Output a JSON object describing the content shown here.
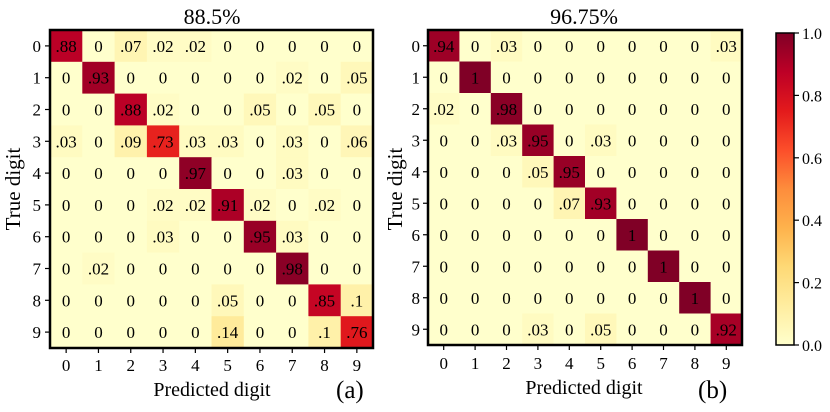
{
  "colormap": [
    "#ffffcc",
    "#ffeda0",
    "#fed976",
    "#feb24c",
    "#fd8d3c",
    "#fc4e2a",
    "#e31a1c",
    "#bd0026",
    "#800026"
  ],
  "chart_data": [
    {
      "type": "heatmap",
      "panel_label": "(a)",
      "title": "88.5%",
      "xlabel": "Predicted digit",
      "ylabel": "True digit",
      "x_ticks": [
        "0",
        "1",
        "2",
        "3",
        "4",
        "5",
        "6",
        "7",
        "8",
        "9"
      ],
      "y_ticks": [
        "0",
        "1",
        "2",
        "3",
        "4",
        "5",
        "6",
        "7",
        "8",
        "9"
      ],
      "value_range": [
        0,
        1
      ],
      "values": [
        [
          0.88,
          0,
          0.07,
          0.02,
          0.02,
          0,
          0,
          0,
          0,
          0
        ],
        [
          0,
          0.93,
          0,
          0,
          0,
          0,
          0,
          0.02,
          0,
          0.05
        ],
        [
          0,
          0,
          0.88,
          0.02,
          0,
          0,
          0.05,
          0,
          0.05,
          0
        ],
        [
          0.03,
          0,
          0.09,
          0.73,
          0.03,
          0.03,
          0,
          0.03,
          0,
          0.06
        ],
        [
          0,
          0,
          0,
          0,
          0.97,
          0,
          0,
          0.03,
          0,
          0
        ],
        [
          0,
          0,
          0,
          0.02,
          0.02,
          0.91,
          0.02,
          0,
          0.02,
          0
        ],
        [
          0,
          0,
          0,
          0.03,
          0,
          0,
          0.95,
          0.03,
          0,
          0
        ],
        [
          0,
          0.02,
          0,
          0,
          0,
          0,
          0,
          0.98,
          0,
          0
        ],
        [
          0,
          0,
          0,
          0,
          0,
          0.05,
          0,
          0,
          0.85,
          0.1
        ],
        [
          0,
          0,
          0,
          0,
          0,
          0.14,
          0,
          0,
          0.1,
          0.76
        ]
      ],
      "cell_labels": [
        [
          ".88",
          "0",
          ".07",
          ".02",
          ".02",
          "0",
          "0",
          "0",
          "0",
          "0"
        ],
        [
          "0",
          ".93",
          "0",
          "0",
          "0",
          "0",
          "0",
          ".02",
          "0",
          ".05"
        ],
        [
          "0",
          "0",
          ".88",
          ".02",
          "0",
          "0",
          ".05",
          "0",
          ".05",
          "0"
        ],
        [
          ".03",
          "0",
          ".09",
          ".73",
          ".03",
          ".03",
          "0",
          ".03",
          "0",
          ".06"
        ],
        [
          "0",
          "0",
          "0",
          "0",
          ".97",
          "0",
          "0",
          ".03",
          "0",
          "0"
        ],
        [
          "0",
          "0",
          "0",
          ".02",
          ".02",
          ".91",
          ".02",
          "0",
          ".02",
          "0"
        ],
        [
          "0",
          "0",
          "0",
          ".03",
          "0",
          "0",
          ".95",
          ".03",
          "0",
          "0"
        ],
        [
          "0",
          ".02",
          "0",
          "0",
          "0",
          "0",
          "0",
          ".98",
          "0",
          "0"
        ],
        [
          "0",
          "0",
          "0",
          "0",
          "0",
          ".05",
          "0",
          "0",
          ".85",
          ".1"
        ],
        [
          "0",
          "0",
          "0",
          "0",
          "0",
          ".14",
          "0",
          "0",
          ".1",
          ".76"
        ]
      ]
    },
    {
      "type": "heatmap",
      "panel_label": "(b)",
      "title": "96.75%",
      "xlabel": "Predicted digit",
      "ylabel": "True digit",
      "x_ticks": [
        "0",
        "1",
        "2",
        "3",
        "4",
        "5",
        "6",
        "7",
        "8",
        "9"
      ],
      "y_ticks": [
        "0",
        "1",
        "2",
        "3",
        "4",
        "5",
        "6",
        "7",
        "8",
        "9"
      ],
      "value_range": [
        0,
        1
      ],
      "values": [
        [
          0.94,
          0,
          0.03,
          0,
          0,
          0,
          0,
          0,
          0,
          0.03
        ],
        [
          0,
          1,
          0,
          0,
          0,
          0,
          0,
          0,
          0,
          0
        ],
        [
          0.02,
          0,
          0.98,
          0,
          0,
          0,
          0,
          0,
          0,
          0
        ],
        [
          0,
          0,
          0.03,
          0.95,
          0,
          0.03,
          0,
          0,
          0,
          0
        ],
        [
          0,
          0,
          0,
          0.05,
          0.95,
          0,
          0,
          0,
          0,
          0
        ],
        [
          0,
          0,
          0,
          0,
          0.07,
          0.93,
          0,
          0,
          0,
          0
        ],
        [
          0,
          0,
          0,
          0,
          0,
          0,
          1,
          0,
          0,
          0
        ],
        [
          0,
          0,
          0,
          0,
          0,
          0,
          0,
          1,
          0,
          0
        ],
        [
          0,
          0,
          0,
          0,
          0,
          0,
          0,
          0,
          1,
          0
        ],
        [
          0,
          0,
          0,
          0.03,
          0,
          0.05,
          0,
          0,
          0,
          0.92
        ]
      ],
      "cell_labels": [
        [
          ".94",
          "0",
          ".03",
          "0",
          "0",
          "0",
          "0",
          "0",
          "0",
          ".03"
        ],
        [
          "0",
          "1",
          "0",
          "0",
          "0",
          "0",
          "0",
          "0",
          "0",
          "0"
        ],
        [
          ".02",
          "0",
          ".98",
          "0",
          "0",
          "0",
          "0",
          "0",
          "0",
          "0"
        ],
        [
          "0",
          "0",
          ".03",
          ".95",
          "0",
          ".03",
          "0",
          "0",
          "0",
          "0"
        ],
        [
          "0",
          "0",
          "0",
          ".05",
          ".95",
          "0",
          "0",
          "0",
          "0",
          "0"
        ],
        [
          "0",
          "0",
          "0",
          "0",
          ".07",
          ".93",
          "0",
          "0",
          "0",
          "0"
        ],
        [
          "0",
          "0",
          "0",
          "0",
          "0",
          "0",
          "1",
          "0",
          "0",
          "0"
        ],
        [
          "0",
          "0",
          "0",
          "0",
          "0",
          "0",
          "0",
          "1",
          "0",
          "0"
        ],
        [
          "0",
          "0",
          "0",
          "0",
          "0",
          "0",
          "0",
          "0",
          "1",
          "0"
        ],
        [
          "0",
          "0",
          "0",
          ".03",
          "0",
          ".05",
          "0",
          "0",
          "0",
          ".92"
        ]
      ]
    }
  ],
  "colorbar": {
    "range": [
      0,
      1
    ],
    "ticks": [
      "0.0",
      "0.2",
      "0.4",
      "0.6",
      "0.8",
      "1.0"
    ],
    "tick_values": [
      0,
      0.2,
      0.4,
      0.6,
      0.8,
      1.0
    ]
  }
}
